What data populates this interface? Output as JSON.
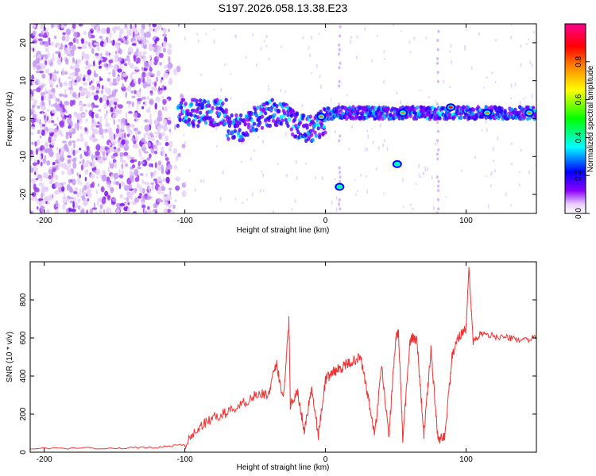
{
  "title": "S197.2026.058.13.38.E23",
  "chart_data": [
    {
      "type": "heatmap",
      "xlabel": "Height of straight line (km)",
      "ylabel": "Frequency (Hz)",
      "xlim": [
        -210,
        150
      ],
      "ylim": [
        -25,
        25
      ],
      "xticks": [
        -200,
        -100,
        0,
        100
      ],
      "yticks": [
        -20,
        -10,
        0,
        10,
        20
      ],
      "colorbar": {
        "label": "Normalized spectral amplitude",
        "range": [
          0,
          1
        ],
        "ticks": [
          0.0,
          0.2,
          0.4,
          0.6,
          0.8
        ],
        "colormap": [
          "#ffffff",
          "#d8b4f8",
          "#8b00ff",
          "#0000ff",
          "#00ffff",
          "#00ff00",
          "#ffff00",
          "#ff8000",
          "#ff0000",
          "#ff00a0"
        ]
      },
      "features": {
        "noise_region_x": [
          -210,
          -110
        ],
        "main_band_y": 1.5,
        "spots": [
          {
            "x": 10,
            "y": -18,
            "amplitude": 0.5
          },
          {
            "x": 51,
            "y": -12,
            "amplitude": 0.5
          },
          {
            "x": -3,
            "y": 0.5,
            "amplitude": 0.85
          },
          {
            "x": 55,
            "y": 1.5,
            "amplitude": 0.85
          },
          {
            "x": 89,
            "y": 3,
            "amplitude": 0.9
          },
          {
            "x": 115,
            "y": 1.5,
            "amplitude": 0.8
          },
          {
            "x": 145,
            "y": 1.5,
            "amplitude": 0.85
          }
        ]
      }
    },
    {
      "type": "line",
      "xlabel": "Height of straight line (km)",
      "ylabel": "SNR (10 * v/v)",
      "xlim": [
        -210,
        150
      ],
      "ylim": [
        0,
        1000
      ],
      "xticks": [
        -200,
        -100,
        0,
        100
      ],
      "yticks": [
        0,
        200,
        400,
        600,
        800
      ],
      "color": "#ee3333",
      "x": [
        -210,
        -150,
        -120,
        -100,
        -90,
        -80,
        -70,
        -60,
        -50,
        -40,
        -35,
        -30,
        -26,
        -25,
        -20,
        -15,
        -10,
        -5,
        0,
        5,
        10,
        15,
        20,
        25,
        30,
        35,
        40,
        45,
        50,
        52,
        55,
        60,
        62,
        65,
        70,
        75,
        80,
        85,
        90,
        95,
        100,
        102,
        105,
        110,
        120,
        130,
        140,
        150
      ],
      "values": [
        20,
        22,
        25,
        40,
        130,
        180,
        210,
        250,
        300,
        310,
        470,
        280,
        690,
        250,
        320,
        110,
        340,
        90,
        380,
        420,
        440,
        460,
        480,
        500,
        300,
        90,
        450,
        80,
        600,
        620,
        70,
        580,
        600,
        590,
        90,
        540,
        60,
        90,
        500,
        610,
        650,
        970,
        580,
        620,
        610,
        600,
        590,
        600
      ]
    }
  ]
}
